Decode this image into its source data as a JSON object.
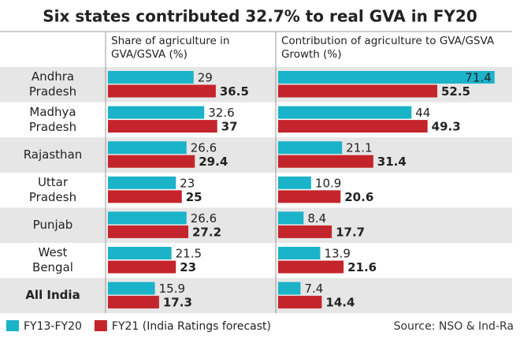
{
  "chart_data": {
    "type": "bar",
    "orientation": "horizontal",
    "title": "Six states contributed 32.7% to real GVA in FY20",
    "categories": [
      "Andhra Pradesh",
      "Madhya Pradesh",
      "Rajasthan",
      "Uttar Pradesh",
      "Punjab",
      "West Bengal",
      "All India"
    ],
    "series": [
      {
        "name": "FY13-FY20",
        "color": "#1bb3c9"
      },
      {
        "name": "FY21 (India Ratings forecast)",
        "color": "#c4242b"
      }
    ],
    "panels": [
      {
        "title": "Share of agriculture in GVA/GSVA (%)",
        "xlim": [
          0,
          56
        ],
        "series": [
          {
            "values": [
              29,
              32.6,
              26.6,
              23,
              26.6,
              21.5,
              15.9
            ]
          },
          {
            "values": [
              36.5,
              37,
              29.4,
              25,
              27.2,
              23,
              17.3
            ]
          }
        ]
      },
      {
        "title": "Contribution of agriculture to GVA/GSVA Growth (%)",
        "xlim": [
          0,
          72
        ],
        "series": [
          {
            "values": [
              71.4,
              44,
              21.1,
              10.9,
              8.4,
              13.9,
              7.4
            ]
          },
          {
            "values": [
              52.5,
              49.3,
              31.4,
              20.6,
              17.7,
              21.6,
              14.4
            ]
          }
        ]
      }
    ],
    "source": "Source: NSO & Ind-Ra"
  }
}
